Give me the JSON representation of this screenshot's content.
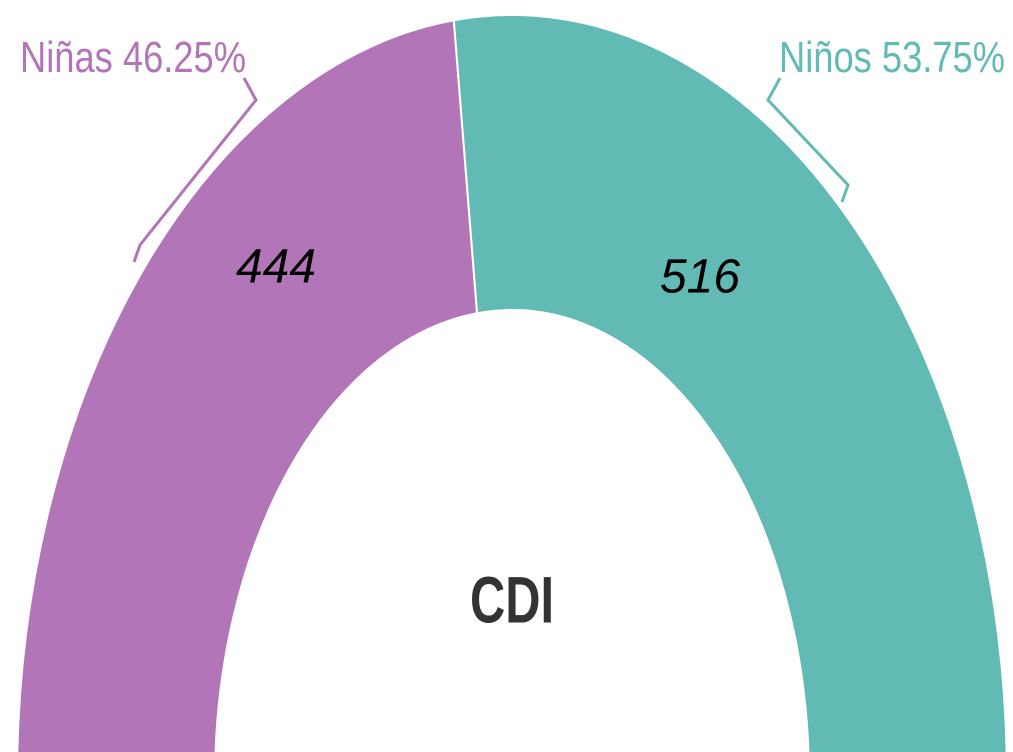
{
  "chart_data": {
    "type": "donut",
    "half": true,
    "categories": [
      "Niñas",
      "Niños"
    ],
    "values": [
      444,
      516
    ],
    "percentages": [
      46.25,
      53.75
    ],
    "percentage_labels": [
      "46.25%",
      "53.75%"
    ],
    "colors": [
      "#b275b8",
      "#62bab4"
    ],
    "center_label": "CDI"
  }
}
